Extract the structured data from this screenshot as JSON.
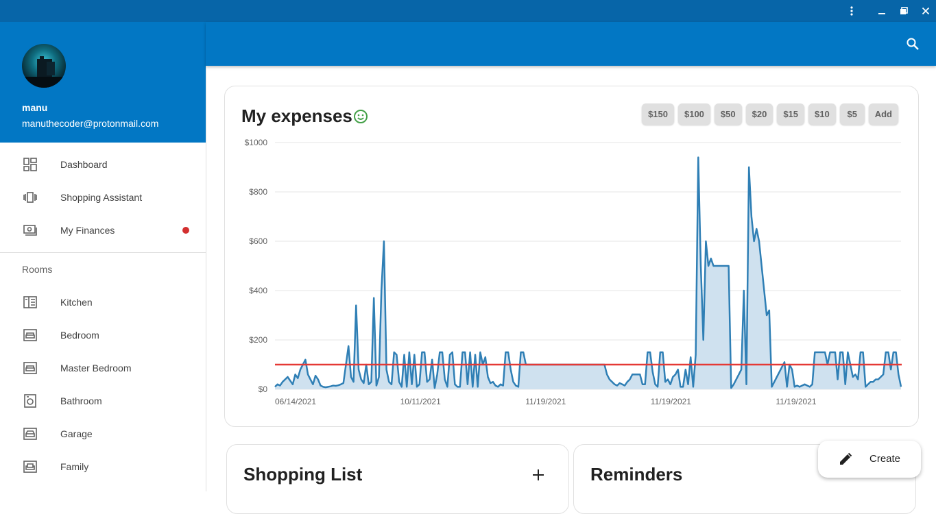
{
  "window": {
    "buttons": [
      "more-icon",
      "minimize-icon",
      "restore-icon",
      "close-icon"
    ]
  },
  "profile": {
    "name": "manu",
    "email": "manuthecoder@protonmail.com"
  },
  "nav": {
    "items": [
      {
        "label": "Dashboard",
        "icon": "dashboard-icon"
      },
      {
        "label": "Shopping Assistant",
        "icon": "carousel-icon"
      },
      {
        "label": "My Finances",
        "icon": "money-icon",
        "badge": "#d32f2f"
      }
    ],
    "section_label": "Rooms",
    "rooms": [
      {
        "label": "Kitchen",
        "icon": "kitchen-icon"
      },
      {
        "label": "Bedroom",
        "icon": "bed-icon"
      },
      {
        "label": "Master Bedroom",
        "icon": "bed-icon"
      },
      {
        "label": "Bathroom",
        "icon": "bathroom-icon"
      },
      {
        "label": "Garage",
        "icon": "car-icon"
      },
      {
        "label": "Family",
        "icon": "couch-icon"
      }
    ]
  },
  "expenses": {
    "title": "My expenses",
    "mood_icon": "smiley-icon",
    "chips": [
      "$150",
      "$100",
      "$50",
      "$20",
      "$15",
      "$10",
      "$5",
      "Add"
    ]
  },
  "chart_data": {
    "type": "area",
    "title": "",
    "xlabel": "",
    "ylabel": "",
    "ylim": [
      0,
      1000
    ],
    "y_ticks": [
      "$0",
      "$200",
      "$400",
      "$600",
      "$800",
      "$1000"
    ],
    "x_tick_labels": [
      "06/14/2021",
      "10/11/2021",
      "11/19/2021",
      "11/19/2021",
      "11/19/2021"
    ],
    "grid": true,
    "reference_line": {
      "value": 100,
      "color": "#e53935"
    },
    "series_color": "#2f7fb5",
    "fill_color": "#cfe1ef",
    "values": [
      10,
      20,
      15,
      30,
      40,
      50,
      35,
      20,
      60,
      45,
      80,
      100,
      120,
      60,
      40,
      20,
      55,
      40,
      15,
      10,
      8,
      10,
      12,
      15,
      14,
      16,
      20,
      25,
      100,
      175,
      50,
      30,
      340,
      80,
      40,
      25,
      100,
      20,
      30,
      370,
      15,
      50,
      400,
      600,
      80,
      30,
      20,
      150,
      140,
      30,
      10,
      140,
      10,
      150,
      20,
      140,
      10,
      20,
      150,
      150,
      30,
      40,
      120,
      5,
      60,
      150,
      150,
      40,
      10,
      140,
      150,
      20,
      10,
      10,
      150,
      150,
      20,
      150,
      10,
      140,
      10,
      150,
      100,
      130,
      50,
      25,
      30,
      15,
      10,
      20,
      15,
      150,
      150,
      80,
      30,
      15,
      10,
      150,
      150,
      100,
      100,
      100,
      100,
      100,
      100,
      100,
      100,
      100,
      100,
      100,
      100,
      100,
      100,
      100,
      100,
      100,
      100,
      100,
      100,
      100,
      100,
      100,
      100,
      100,
      100,
      100,
      100,
      100,
      100,
      100,
      100,
      60,
      40,
      30,
      20,
      15,
      25,
      20,
      15,
      30,
      40,
      60,
      60,
      60,
      60,
      20,
      20,
      150,
      150,
      70,
      20,
      10,
      150,
      150,
      30,
      40,
      20,
      50,
      60,
      80,
      10,
      10,
      80,
      20,
      130,
      10,
      140,
      940,
      500,
      200,
      600,
      500,
      530,
      500,
      500,
      500,
      500,
      500,
      500,
      500,
      5,
      20,
      40,
      60,
      80,
      400,
      20,
      900,
      700,
      600,
      650,
      600,
      500,
      400,
      300,
      320,
      10,
      30,
      50,
      70,
      90,
      110,
      10,
      100,
      80,
      10,
      15,
      10,
      15,
      20,
      15,
      10,
      20,
      150,
      150,
      150,
      150,
      150,
      100,
      150,
      150,
      150,
      40,
      150,
      150,
      20,
      150,
      100,
      50,
      60,
      40,
      150,
      150,
      10,
      20,
      30,
      30,
      40,
      40,
      50,
      60,
      150,
      150,
      80,
      150,
      150,
      60,
      10
    ]
  },
  "shopping": {
    "title": "Shopping List",
    "add_icon": "plus-icon"
  },
  "reminders": {
    "title": "Reminders"
  },
  "fab": {
    "label": "Create",
    "icon": "pencil-icon"
  }
}
